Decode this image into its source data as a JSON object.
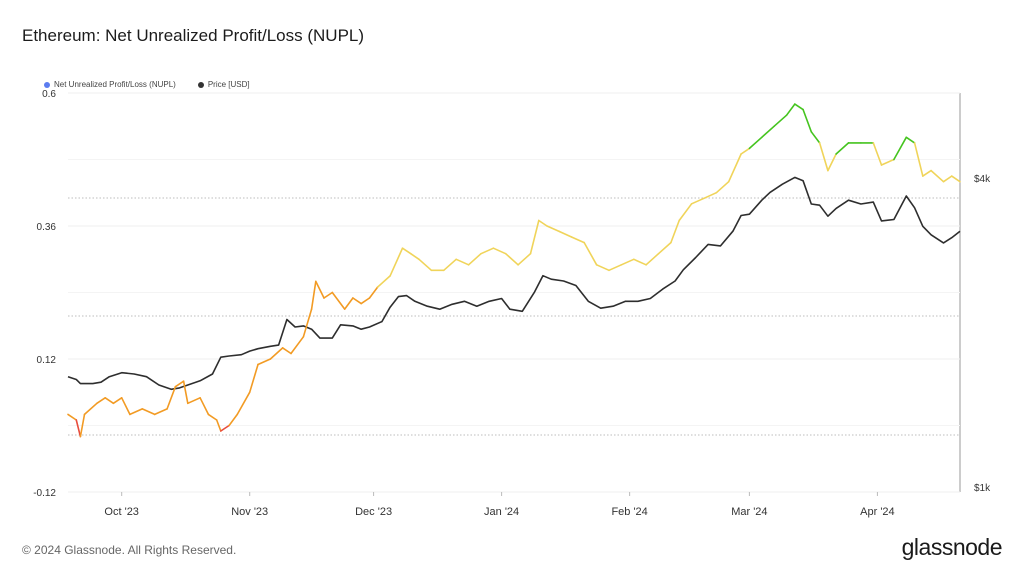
{
  "header": {
    "title": "Ethereum: Net Unrealized Profit/Loss (NUPL)"
  },
  "legend": [
    {
      "label": "Net Unrealized Profit/Loss (NUPL)",
      "color": "#5b7cf0"
    },
    {
      "label": "Price [USD]",
      "color": "#333333"
    }
  ],
  "footer": {
    "copyright": "© 2024 Glassnode. All Rights Reserved.",
    "logo": "glassnode"
  },
  "chart_data": {
    "type": "line",
    "title": "Ethereum: Net Unrealized Profit/Loss (NUPL)",
    "x_range": [
      "2023-09-18",
      "2024-04-21"
    ],
    "x_ticks": [
      {
        "label": "Oct '23",
        "date": "2023-10-01"
      },
      {
        "label": "Nov '23",
        "date": "2023-11-01"
      },
      {
        "label": "Dec '23",
        "date": "2023-12-01"
      },
      {
        "label": "Jan '24",
        "date": "2024-01-01"
      },
      {
        "label": "Feb '24",
        "date": "2024-02-01"
      },
      {
        "label": "Mar '24",
        "date": "2024-03-01"
      },
      {
        "label": "Apr '24",
        "date": "2024-04-01"
      }
    ],
    "y_left": {
      "ticks": [
        "0.6",
        "0.36",
        "0.12",
        "-0.12"
      ],
      "ylim": [
        -0.12,
        0.6
      ]
    },
    "y_right": {
      "ticks": [
        "$4k",
        "$1k"
      ],
      "scale": "log"
    },
    "grid": true,
    "legend_position": "top-left",
    "nupl_color_bands": [
      {
        "min": -1,
        "max": 0,
        "color": "#e84d3d"
      },
      {
        "min": 0,
        "max": 0.25,
        "color": "#f29b24"
      },
      {
        "min": 0.25,
        "max": 0.5,
        "color": "#f0d45a"
      },
      {
        "min": 0.5,
        "max": 1,
        "color": "#45c41f"
      }
    ],
    "series": [
      {
        "name": "Net Unrealized Profit/Loss (NUPL)",
        "axis": "left",
        "points": [
          [
            "2023-09-18",
            0.02
          ],
          [
            "2023-09-20",
            0.01
          ],
          [
            "2023-09-21",
            -0.02
          ],
          [
            "2023-09-22",
            0.02
          ],
          [
            "2023-09-25",
            0.04
          ],
          [
            "2023-09-27",
            0.05
          ],
          [
            "2023-09-29",
            0.04
          ],
          [
            "2023-10-01",
            0.05
          ],
          [
            "2023-10-03",
            0.02
          ],
          [
            "2023-10-06",
            0.03
          ],
          [
            "2023-10-09",
            0.02
          ],
          [
            "2023-10-12",
            0.03
          ],
          [
            "2023-10-14",
            0.07
          ],
          [
            "2023-10-16",
            0.08
          ],
          [
            "2023-10-17",
            0.04
          ],
          [
            "2023-10-20",
            0.05
          ],
          [
            "2023-10-22",
            0.02
          ],
          [
            "2023-10-24",
            0.01
          ],
          [
            "2023-10-25",
            -0.01
          ],
          [
            "2023-10-27",
            0.0
          ],
          [
            "2023-10-29",
            0.02
          ],
          [
            "2023-11-01",
            0.06
          ],
          [
            "2023-11-03",
            0.11
          ],
          [
            "2023-11-06",
            0.12
          ],
          [
            "2023-11-09",
            0.14
          ],
          [
            "2023-11-11",
            0.13
          ],
          [
            "2023-11-14",
            0.16
          ],
          [
            "2023-11-16",
            0.21
          ],
          [
            "2023-11-17",
            0.26
          ],
          [
            "2023-11-19",
            0.23
          ],
          [
            "2023-11-21",
            0.24
          ],
          [
            "2023-11-24",
            0.21
          ],
          [
            "2023-11-26",
            0.23
          ],
          [
            "2023-11-28",
            0.22
          ],
          [
            "2023-11-30",
            0.23
          ],
          [
            "2023-12-02",
            0.25
          ],
          [
            "2023-12-05",
            0.27
          ],
          [
            "2023-12-08",
            0.32
          ],
          [
            "2023-12-10",
            0.31
          ],
          [
            "2023-12-12",
            0.3
          ],
          [
            "2023-12-15",
            0.28
          ],
          [
            "2023-12-18",
            0.28
          ],
          [
            "2023-12-21",
            0.3
          ],
          [
            "2023-12-24",
            0.29
          ],
          [
            "2023-12-27",
            0.31
          ],
          [
            "2023-12-30",
            0.32
          ],
          [
            "2024-01-02",
            0.31
          ],
          [
            "2024-01-05",
            0.29
          ],
          [
            "2024-01-08",
            0.31
          ],
          [
            "2024-01-10",
            0.37
          ],
          [
            "2024-01-12",
            0.36
          ],
          [
            "2024-01-15",
            0.35
          ],
          [
            "2024-01-18",
            0.34
          ],
          [
            "2024-01-21",
            0.33
          ],
          [
            "2024-01-24",
            0.29
          ],
          [
            "2024-01-27",
            0.28
          ],
          [
            "2024-01-30",
            0.29
          ],
          [
            "2024-02-02",
            0.3
          ],
          [
            "2024-02-05",
            0.29
          ],
          [
            "2024-02-08",
            0.31
          ],
          [
            "2024-02-11",
            0.33
          ],
          [
            "2024-02-13",
            0.37
          ],
          [
            "2024-02-16",
            0.4
          ],
          [
            "2024-02-19",
            0.41
          ],
          [
            "2024-02-22",
            0.42
          ],
          [
            "2024-02-25",
            0.44
          ],
          [
            "2024-02-28",
            0.49
          ],
          [
            "2024-03-01",
            0.5
          ],
          [
            "2024-03-04",
            0.52
          ],
          [
            "2024-03-07",
            0.54
          ],
          [
            "2024-03-10",
            0.56
          ],
          [
            "2024-03-12",
            0.58
          ],
          [
            "2024-03-14",
            0.57
          ],
          [
            "2024-03-16",
            0.53
          ],
          [
            "2024-03-18",
            0.51
          ],
          [
            "2024-03-20",
            0.46
          ],
          [
            "2024-03-22",
            0.49
          ],
          [
            "2024-03-25",
            0.51
          ],
          [
            "2024-03-28",
            0.51
          ],
          [
            "2024-03-31",
            0.51
          ],
          [
            "2024-04-02",
            0.47
          ],
          [
            "2024-04-05",
            0.48
          ],
          [
            "2024-04-08",
            0.52
          ],
          [
            "2024-04-10",
            0.51
          ],
          [
            "2024-04-12",
            0.45
          ],
          [
            "2024-04-14",
            0.46
          ],
          [
            "2024-04-17",
            0.44
          ],
          [
            "2024-04-19",
            0.45
          ],
          [
            "2024-04-21",
            0.44
          ]
        ]
      },
      {
        "name": "Price [USD]",
        "axis": "right",
        "color": "#2e2e2e",
        "points": [
          [
            "2023-09-18",
            1640
          ],
          [
            "2023-09-20",
            1620
          ],
          [
            "2023-09-21",
            1590
          ],
          [
            "2023-09-24",
            1590
          ],
          [
            "2023-09-26",
            1600
          ],
          [
            "2023-09-28",
            1640
          ],
          [
            "2023-10-01",
            1670
          ],
          [
            "2023-10-04",
            1660
          ],
          [
            "2023-10-07",
            1640
          ],
          [
            "2023-10-10",
            1580
          ],
          [
            "2023-10-13",
            1550
          ],
          [
            "2023-10-15",
            1560
          ],
          [
            "2023-10-17",
            1580
          ],
          [
            "2023-10-20",
            1610
          ],
          [
            "2023-10-23",
            1660
          ],
          [
            "2023-10-25",
            1790
          ],
          [
            "2023-10-27",
            1800
          ],
          [
            "2023-10-30",
            1810
          ],
          [
            "2023-11-01",
            1840
          ],
          [
            "2023-11-03",
            1860
          ],
          [
            "2023-11-06",
            1880
          ],
          [
            "2023-11-08",
            1890
          ],
          [
            "2023-11-10",
            2120
          ],
          [
            "2023-11-12",
            2050
          ],
          [
            "2023-11-14",
            2060
          ],
          [
            "2023-11-16",
            2030
          ],
          [
            "2023-11-18",
            1950
          ],
          [
            "2023-11-21",
            1950
          ],
          [
            "2023-11-23",
            2070
          ],
          [
            "2023-11-26",
            2060
          ],
          [
            "2023-11-28",
            2030
          ],
          [
            "2023-11-30",
            2050
          ],
          [
            "2023-12-03",
            2100
          ],
          [
            "2023-12-05",
            2240
          ],
          [
            "2023-12-07",
            2350
          ],
          [
            "2023-12-09",
            2360
          ],
          [
            "2023-12-11",
            2300
          ],
          [
            "2023-12-14",
            2250
          ],
          [
            "2023-12-17",
            2220
          ],
          [
            "2023-12-20",
            2270
          ],
          [
            "2023-12-23",
            2300
          ],
          [
            "2023-12-26",
            2250
          ],
          [
            "2023-12-29",
            2300
          ],
          [
            "2024-01-01",
            2330
          ],
          [
            "2024-01-03",
            2220
          ],
          [
            "2024-01-06",
            2200
          ],
          [
            "2024-01-09",
            2400
          ],
          [
            "2024-01-11",
            2580
          ],
          [
            "2024-01-13",
            2540
          ],
          [
            "2024-01-16",
            2520
          ],
          [
            "2024-01-19",
            2470
          ],
          [
            "2024-01-22",
            2300
          ],
          [
            "2024-01-25",
            2230
          ],
          [
            "2024-01-28",
            2250
          ],
          [
            "2024-01-31",
            2300
          ],
          [
            "2024-02-03",
            2300
          ],
          [
            "2024-02-06",
            2330
          ],
          [
            "2024-02-09",
            2430
          ],
          [
            "2024-02-12",
            2520
          ],
          [
            "2024-02-14",
            2650
          ],
          [
            "2024-02-17",
            2800
          ],
          [
            "2024-02-20",
            2970
          ],
          [
            "2024-02-23",
            2950
          ],
          [
            "2024-02-26",
            3150
          ],
          [
            "2024-02-28",
            3380
          ],
          [
            "2024-03-01",
            3400
          ],
          [
            "2024-03-04",
            3620
          ],
          [
            "2024-03-06",
            3750
          ],
          [
            "2024-03-09",
            3890
          ],
          [
            "2024-03-12",
            4010
          ],
          [
            "2024-03-14",
            3950
          ],
          [
            "2024-03-16",
            3560
          ],
          [
            "2024-03-18",
            3540
          ],
          [
            "2024-03-20",
            3370
          ],
          [
            "2024-03-22",
            3490
          ],
          [
            "2024-03-25",
            3620
          ],
          [
            "2024-03-28",
            3560
          ],
          [
            "2024-03-31",
            3590
          ],
          [
            "2024-04-02",
            3300
          ],
          [
            "2024-04-05",
            3320
          ],
          [
            "2024-04-08",
            3690
          ],
          [
            "2024-04-10",
            3500
          ],
          [
            "2024-04-12",
            3220
          ],
          [
            "2024-04-14",
            3100
          ],
          [
            "2024-04-17",
            2990
          ],
          [
            "2024-04-19",
            3060
          ],
          [
            "2024-04-21",
            3150
          ]
        ]
      }
    ]
  }
}
